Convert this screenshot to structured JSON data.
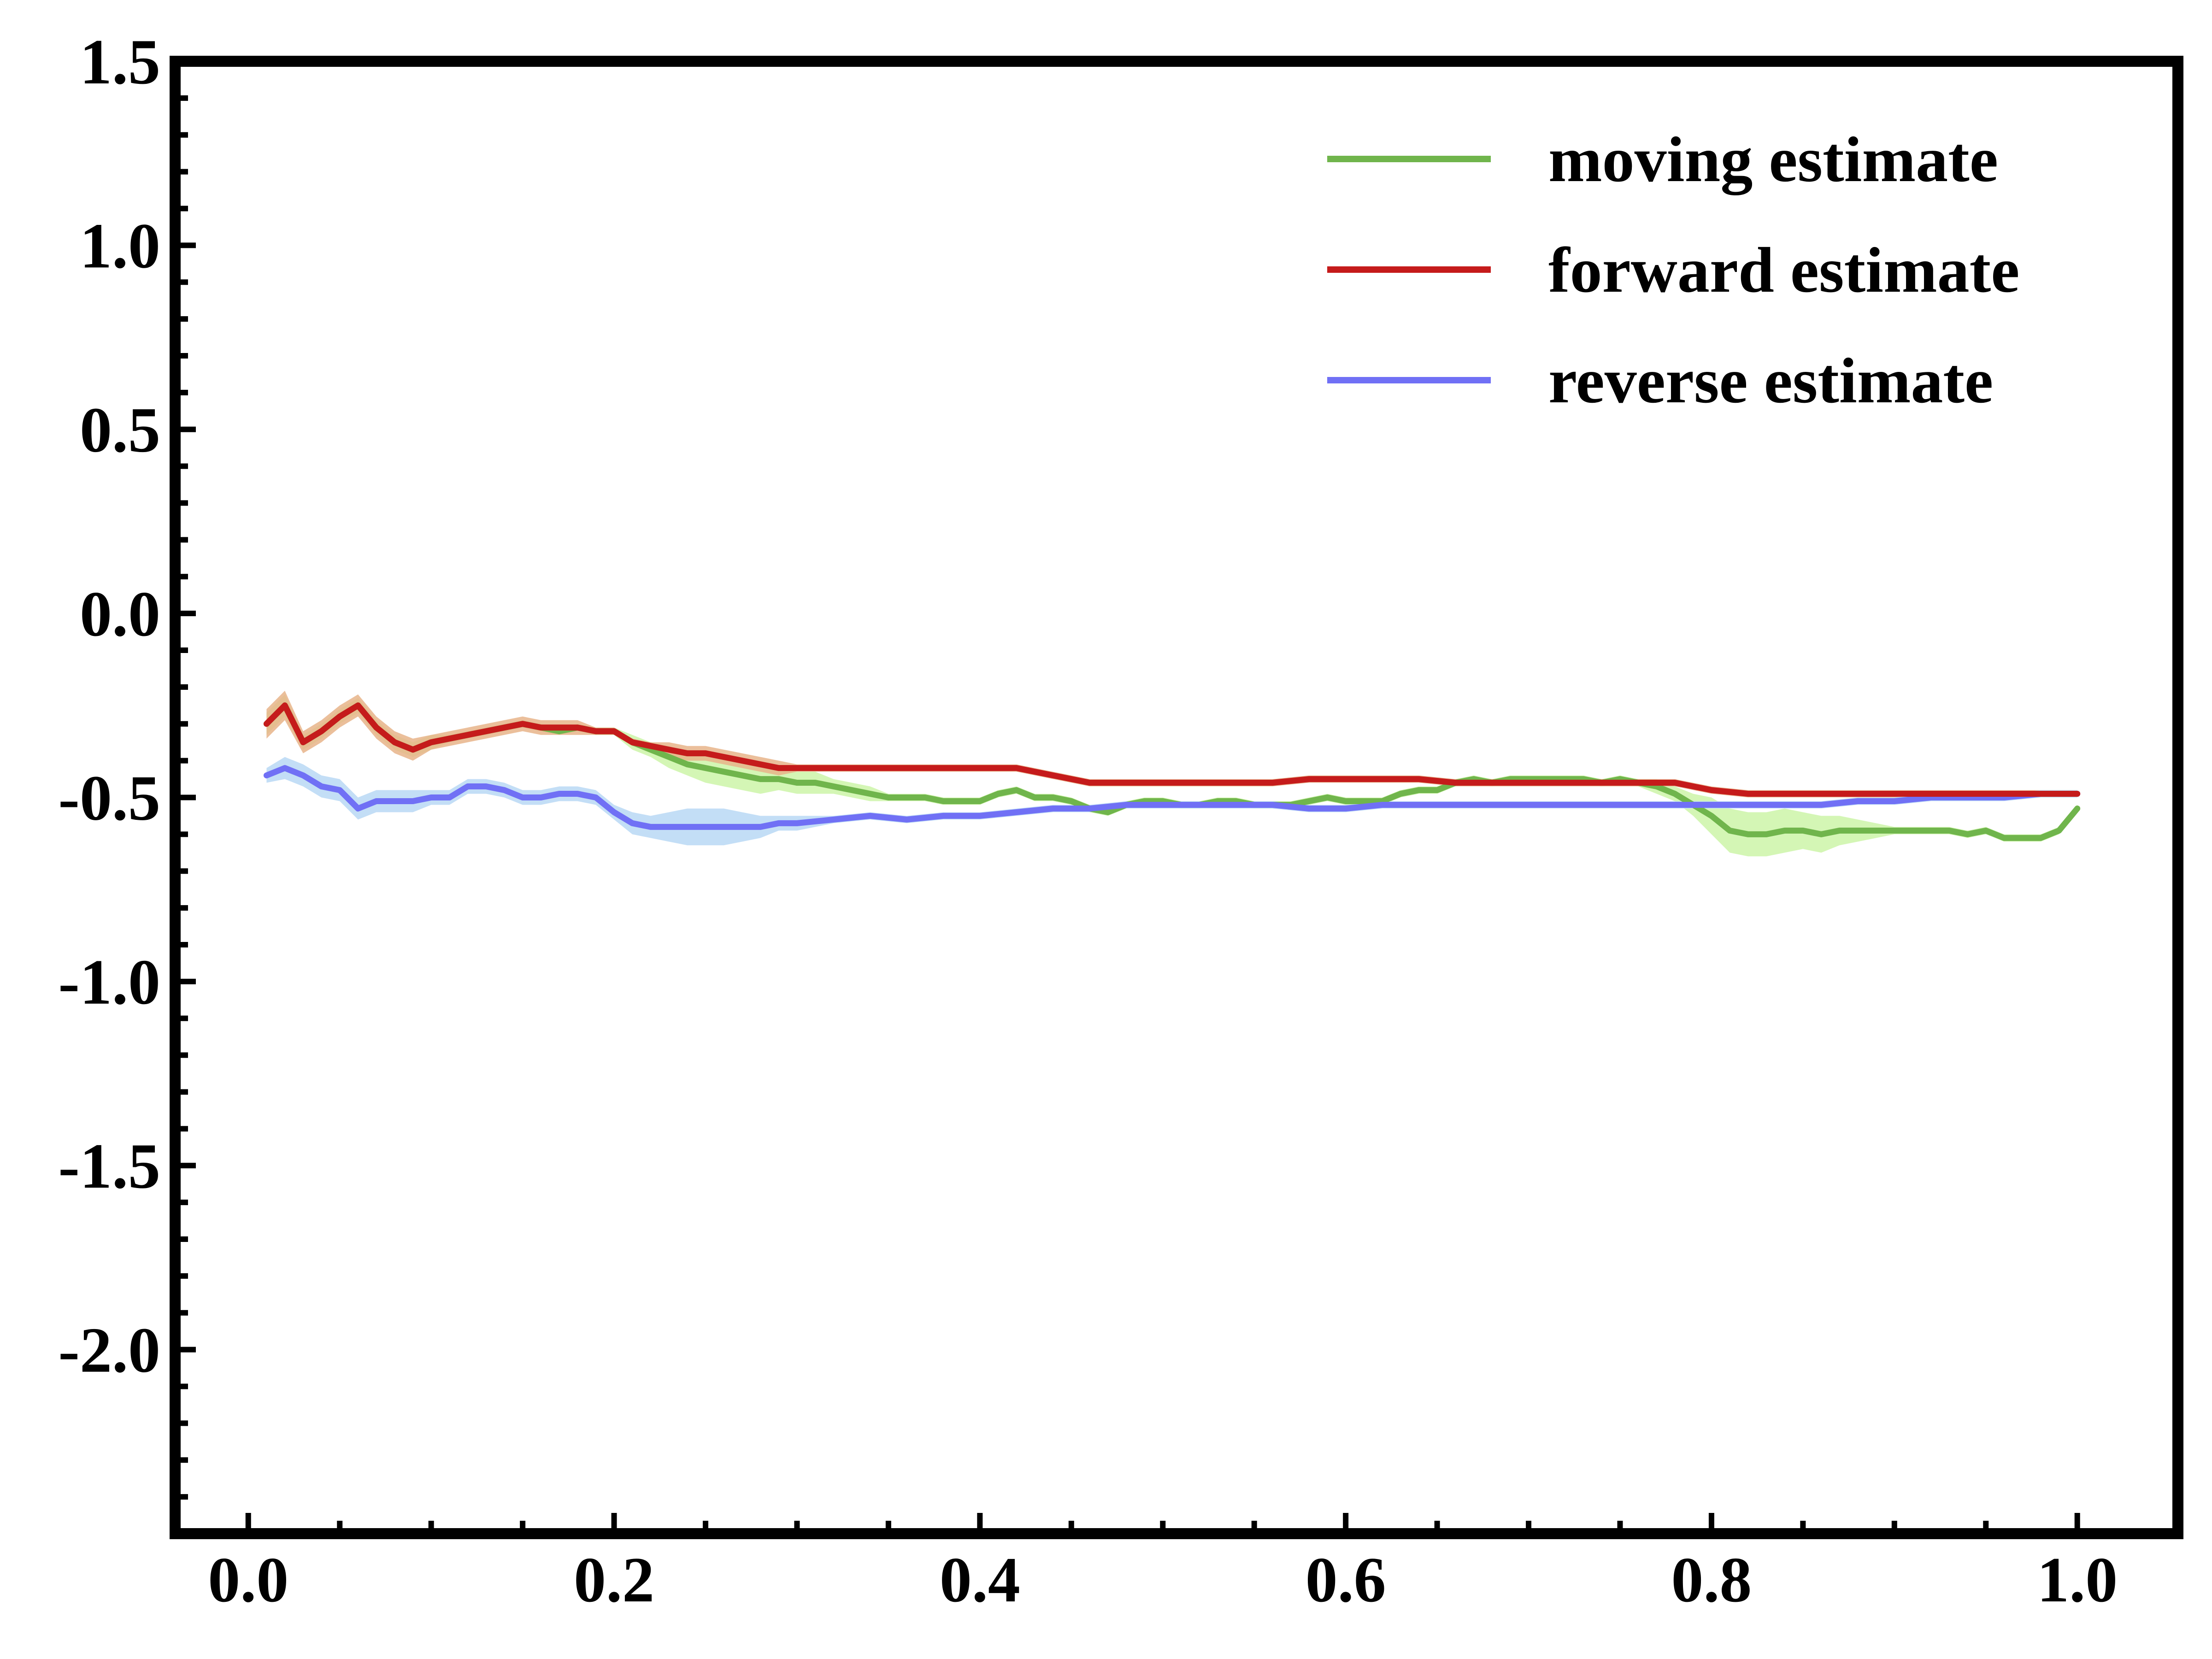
{
  "chart_data": {
    "type": "line",
    "title": "",
    "xlabel": "",
    "ylabel": "",
    "xlim": [
      -0.04,
      1.055
    ],
    "ylim": [
      -2.5,
      1.5
    ],
    "xticks": [
      0.0,
      0.2,
      0.4,
      0.6,
      0.8,
      1.0
    ],
    "xtick_labels": [
      "0.0",
      "0.2",
      "0.4",
      "0.6",
      "0.8",
      "1.0"
    ],
    "yticks": [
      1.5,
      1.0,
      0.5,
      0.0,
      -0.5,
      -1.0,
      -1.5,
      -2.0
    ],
    "ytick_labels": [
      "1.5",
      "1.0",
      "0.5",
      "0.0",
      "-0.5",
      "-1.0",
      "-1.5",
      "-2.0"
    ],
    "grid": false,
    "legend_position": "top-right",
    "series": [
      {
        "name": "moving estimate",
        "color": "#70b54c",
        "band_color": "#ccf5a8",
        "x": [
          0.01,
          0.02,
          0.03,
          0.04,
          0.05,
          0.06,
          0.07,
          0.08,
          0.09,
          0.1,
          0.11,
          0.12,
          0.13,
          0.14,
          0.15,
          0.16,
          0.17,
          0.18,
          0.19,
          0.2,
          0.21,
          0.22,
          0.23,
          0.24,
          0.25,
          0.26,
          0.27,
          0.28,
          0.29,
          0.3,
          0.31,
          0.32,
          0.33,
          0.34,
          0.35,
          0.36,
          0.37,
          0.38,
          0.39,
          0.4,
          0.41,
          0.42,
          0.43,
          0.44,
          0.45,
          0.46,
          0.47,
          0.48,
          0.49,
          0.5,
          0.51,
          0.52,
          0.53,
          0.54,
          0.55,
          0.56,
          0.57,
          0.58,
          0.59,
          0.6,
          0.61,
          0.62,
          0.63,
          0.64,
          0.65,
          0.66,
          0.67,
          0.68,
          0.69,
          0.7,
          0.71,
          0.72,
          0.73,
          0.74,
          0.75,
          0.76,
          0.77,
          0.78,
          0.79,
          0.8,
          0.81,
          0.82,
          0.83,
          0.84,
          0.85,
          0.86,
          0.87,
          0.88,
          0.89,
          0.9,
          0.91,
          0.92,
          0.93,
          0.94,
          0.95,
          0.96,
          0.97,
          0.98,
          0.99,
          1.0
        ],
        "values": [
          -0.3,
          -0.25,
          -0.35,
          -0.32,
          -0.28,
          -0.25,
          -0.31,
          -0.35,
          -0.37,
          -0.35,
          -0.34,
          -0.33,
          -0.32,
          -0.31,
          -0.3,
          -0.31,
          -0.32,
          -0.31,
          -0.32,
          -0.32,
          -0.35,
          -0.37,
          -0.39,
          -0.41,
          -0.42,
          -0.43,
          -0.44,
          -0.45,
          -0.45,
          -0.46,
          -0.46,
          -0.47,
          -0.48,
          -0.49,
          -0.5,
          -0.5,
          -0.5,
          -0.51,
          -0.51,
          -0.51,
          -0.49,
          -0.48,
          -0.5,
          -0.5,
          -0.51,
          -0.53,
          -0.54,
          -0.52,
          -0.51,
          -0.51,
          -0.52,
          -0.52,
          -0.51,
          -0.51,
          -0.52,
          -0.52,
          -0.52,
          -0.51,
          -0.5,
          -0.51,
          -0.51,
          -0.51,
          -0.49,
          -0.48,
          -0.48,
          -0.46,
          -0.45,
          -0.46,
          -0.45,
          -0.45,
          -0.45,
          -0.45,
          -0.45,
          -0.46,
          -0.45,
          -0.46,
          -0.47,
          -0.49,
          -0.52,
          -0.55,
          -0.59,
          -0.6,
          -0.6,
          -0.59,
          -0.59,
          -0.6,
          -0.59,
          -0.59,
          -0.59,
          -0.59,
          -0.59,
          -0.59,
          -0.59,
          -0.6,
          -0.59,
          -0.61,
          -0.61,
          -0.61,
          -0.59,
          -0.53
        ],
        "band_width": [
          0.03,
          0.03,
          0.02,
          0.02,
          0.02,
          0.02,
          0.02,
          0.02,
          0.02,
          0.02,
          0.01,
          0.01,
          0.01,
          0.01,
          0.01,
          0.01,
          0.01,
          0.01,
          0.01,
          0.01,
          0.02,
          0.02,
          0.03,
          0.03,
          0.04,
          0.04,
          0.04,
          0.04,
          0.03,
          0.03,
          0.03,
          0.02,
          0.02,
          0.02,
          0.01,
          0.01,
          0.01,
          0.01,
          0.01,
          0.01,
          0.01,
          0.01,
          0.01,
          0.01,
          0.01,
          0.01,
          0.01,
          0.01,
          0.01,
          0.01,
          0.01,
          0.01,
          0.01,
          0.01,
          0.01,
          0.01,
          0.01,
          0.01,
          0.01,
          0.01,
          0.01,
          0.01,
          0.01,
          0.01,
          0.01,
          0.01,
          0.01,
          0.01,
          0.01,
          0.01,
          0.01,
          0.01,
          0.01,
          0.01,
          0.01,
          0.01,
          0.02,
          0.02,
          0.03,
          0.05,
          0.06,
          0.06,
          0.06,
          0.06,
          0.05,
          0.05,
          0.04,
          0.03,
          0.02,
          0.01,
          0.01,
          0.01,
          0.01,
          0.01,
          0.01,
          0.01,
          0.01,
          0.01,
          0.01,
          0.01
        ]
      },
      {
        "name": "forward estimate",
        "color": "#c51b1b",
        "band_color": "#e8b48a",
        "x": [
          0.01,
          0.02,
          0.03,
          0.04,
          0.05,
          0.06,
          0.07,
          0.08,
          0.09,
          0.1,
          0.11,
          0.12,
          0.13,
          0.14,
          0.15,
          0.16,
          0.17,
          0.18,
          0.19,
          0.2,
          0.21,
          0.22,
          0.23,
          0.24,
          0.25,
          0.26,
          0.27,
          0.28,
          0.29,
          0.3,
          0.32,
          0.34,
          0.36,
          0.38,
          0.4,
          0.42,
          0.44,
          0.46,
          0.48,
          0.5,
          0.52,
          0.54,
          0.56,
          0.58,
          0.6,
          0.62,
          0.64,
          0.66,
          0.68,
          0.7,
          0.72,
          0.74,
          0.76,
          0.78,
          0.8,
          0.82,
          0.84,
          0.86,
          0.88,
          0.9,
          0.92,
          0.94,
          0.96,
          0.98,
          1.0
        ],
        "values": [
          -0.3,
          -0.25,
          -0.35,
          -0.32,
          -0.28,
          -0.25,
          -0.31,
          -0.35,
          -0.37,
          -0.35,
          -0.34,
          -0.33,
          -0.32,
          -0.31,
          -0.3,
          -0.31,
          -0.31,
          -0.31,
          -0.32,
          -0.32,
          -0.35,
          -0.36,
          -0.37,
          -0.38,
          -0.38,
          -0.39,
          -0.4,
          -0.41,
          -0.42,
          -0.42,
          -0.42,
          -0.42,
          -0.42,
          -0.42,
          -0.42,
          -0.42,
          -0.44,
          -0.46,
          -0.46,
          -0.46,
          -0.46,
          -0.46,
          -0.46,
          -0.45,
          -0.45,
          -0.45,
          -0.45,
          -0.46,
          -0.46,
          -0.46,
          -0.46,
          -0.46,
          -0.46,
          -0.46,
          -0.48,
          -0.49,
          -0.49,
          -0.49,
          -0.49,
          -0.49,
          -0.49,
          -0.49,
          -0.49,
          -0.49,
          -0.49
        ],
        "band_width": [
          0.04,
          0.04,
          0.03,
          0.03,
          0.03,
          0.03,
          0.03,
          0.03,
          0.03,
          0.02,
          0.02,
          0.02,
          0.02,
          0.02,
          0.02,
          0.02,
          0.02,
          0.02,
          0.01,
          0.01,
          0.01,
          0.01,
          0.02,
          0.02,
          0.02,
          0.02,
          0.02,
          0.02,
          0.02,
          0.01,
          0.01,
          0.01,
          0.01,
          0.01,
          0.01,
          0.01,
          0.01,
          0.01,
          0.01,
          0.01,
          0.01,
          0.01,
          0.01,
          0.01,
          0.01,
          0.01,
          0.01,
          0.01,
          0.01,
          0.01,
          0.01,
          0.01,
          0.01,
          0.01,
          0.01,
          0.01,
          0.01,
          0.01,
          0.01,
          0.01,
          0.01,
          0.01,
          0.01,
          0.01,
          0.01
        ]
      },
      {
        "name": "reverse estimate",
        "color": "#7070f5",
        "band_color": "#b8d8f5",
        "x": [
          0.01,
          0.02,
          0.03,
          0.04,
          0.05,
          0.06,
          0.07,
          0.08,
          0.09,
          0.1,
          0.11,
          0.12,
          0.13,
          0.14,
          0.15,
          0.16,
          0.17,
          0.18,
          0.19,
          0.2,
          0.21,
          0.22,
          0.23,
          0.24,
          0.25,
          0.26,
          0.27,
          0.28,
          0.29,
          0.3,
          0.32,
          0.34,
          0.36,
          0.38,
          0.4,
          0.42,
          0.44,
          0.46,
          0.48,
          0.5,
          0.52,
          0.54,
          0.56,
          0.58,
          0.6,
          0.62,
          0.64,
          0.66,
          0.68,
          0.7,
          0.72,
          0.74,
          0.76,
          0.78,
          0.8,
          0.82,
          0.84,
          0.86,
          0.88,
          0.9,
          0.92,
          0.94,
          0.96,
          0.98,
          1.0
        ],
        "values": [
          -0.44,
          -0.42,
          -0.44,
          -0.47,
          -0.48,
          -0.53,
          -0.51,
          -0.51,
          -0.51,
          -0.5,
          -0.5,
          -0.47,
          -0.47,
          -0.48,
          -0.5,
          -0.5,
          -0.49,
          -0.49,
          -0.5,
          -0.54,
          -0.57,
          -0.58,
          -0.58,
          -0.58,
          -0.58,
          -0.58,
          -0.58,
          -0.58,
          -0.57,
          -0.57,
          -0.56,
          -0.55,
          -0.56,
          -0.55,
          -0.55,
          -0.54,
          -0.53,
          -0.53,
          -0.52,
          -0.52,
          -0.52,
          -0.52,
          -0.52,
          -0.53,
          -0.53,
          -0.52,
          -0.52,
          -0.52,
          -0.52,
          -0.52,
          -0.52,
          -0.52,
          -0.52,
          -0.52,
          -0.52,
          -0.52,
          -0.52,
          -0.52,
          -0.51,
          -0.51,
          -0.5,
          -0.5,
          -0.5,
          -0.49,
          -0.49
        ],
        "band_width": [
          0.02,
          0.03,
          0.03,
          0.03,
          0.03,
          0.03,
          0.03,
          0.03,
          0.03,
          0.02,
          0.02,
          0.02,
          0.02,
          0.02,
          0.02,
          0.02,
          0.02,
          0.02,
          0.02,
          0.02,
          0.03,
          0.03,
          0.04,
          0.05,
          0.05,
          0.05,
          0.04,
          0.03,
          0.02,
          0.02,
          0.01,
          0.01,
          0.01,
          0.01,
          0.01,
          0.01,
          0.01,
          0.01,
          0.01,
          0.01,
          0.01,
          0.01,
          0.01,
          0.01,
          0.01,
          0.01,
          0.01,
          0.01,
          0.01,
          0.01,
          0.01,
          0.01,
          0.01,
          0.01,
          0.01,
          0.01,
          0.01,
          0.01,
          0.01,
          0.01,
          0.01,
          0.01,
          0.01,
          0.01,
          0.01
        ]
      }
    ]
  }
}
